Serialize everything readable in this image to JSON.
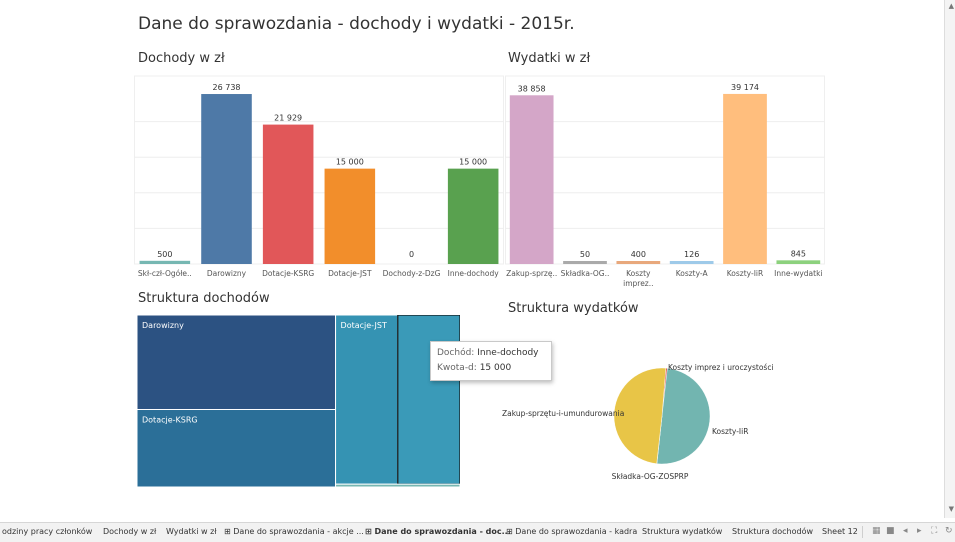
{
  "dashboard_title": "Dane do sprawozdania - dochody i wydatki - 2015r.",
  "colors": {
    "Skł-czł-Ogółem": "#76b7b2",
    "Darowizny": "#4e79a7",
    "Dotacje-KSRG": "#e15759",
    "Dotacje-JST": "#f28e2b",
    "Dochody-z-DzG": "#59a14f",
    "Inne-dochody": "#59a14f",
    "Zakup-sprzętu": "#d4a6c8",
    "Składka-OG": "#aaaaaa",
    "Koszty imprez": "#e8a87c",
    "Koszty-A": "#9ecae9",
    "Koszty-IiR": "#ffbe7d",
    "Inne-wydatki": "#8cd17d",
    "treemap_darowizny": "#2c5282",
    "treemap_ksrg": "#2b6f98",
    "treemap_jst": "#3593b3",
    "treemap_inne": "#3a9ab8",
    "pie_zakup": "#e8c547",
    "pie_iir": "#72b5b0",
    "pie_imprez": "#e15759",
    "pie_skladka": "#4e79a7"
  },
  "chart_data": [
    {
      "type": "bar",
      "title": "Dochody w zł",
      "categories": [
        "Skł-czł-Ogółe..",
        "Darowizny",
        "Dotacje-KSRG",
        "Dotacje-JST",
        "Dochody-z-DzG",
        "Inne-dochody"
      ],
      "values": [
        500,
        26738,
        21929,
        15000,
        0,
        15000
      ],
      "value_labels": [
        "500",
        "26 738",
        "21 929",
        "15 000",
        "0",
        "15 000"
      ],
      "colors": [
        "#76b7b2",
        "#4e79a7",
        "#e15759",
        "#f28e2b",
        "#59a14f",
        "#59a14f"
      ],
      "ylim": [
        0,
        28000
      ],
      "grid": true
    },
    {
      "type": "bar",
      "title": "Wydatki w zł",
      "categories": [
        "Zakup-sprzę..",
        "Składka-OG..",
        "Koszty imprez..",
        "Koszty-A",
        "Koszty-IiR",
        "Inne-wydatki"
      ],
      "category_lines": [
        [
          "Zakup-sprzę.."
        ],
        [
          "Składka-OG.."
        ],
        [
          "Koszty",
          "imprez.."
        ],
        [
          "Koszty-A"
        ],
        [
          "Koszty-IiR"
        ],
        [
          "Inne-wydatki"
        ]
      ],
      "values": [
        38858,
        50,
        400,
        126,
        39174,
        845
      ],
      "value_labels": [
        "38 858",
        "50",
        "400",
        "126",
        "39 174",
        "845"
      ],
      "colors": [
        "#d4a6c8",
        "#aaaaaa",
        "#e8a87c",
        "#9ecae9",
        "#ffbe7d",
        "#8cd17d"
      ],
      "ylim": [
        0,
        41000
      ],
      "grid": true
    },
    {
      "type": "treemap",
      "title": "Struktura dochodów",
      "items": [
        {
          "label": "Darowizny",
          "value": 26738,
          "shown_label": "Darowizny"
        },
        {
          "label": "Dotacje-KSRG",
          "value": 21929,
          "shown_label": "Dotacje-KSRG"
        },
        {
          "label": "Dotacje-JST",
          "value": 15000,
          "shown_label": "Dotacje-JST"
        },
        {
          "label": "Inne-dochody",
          "value": 15000,
          "shown_label": ""
        },
        {
          "label": "Skł-czł-Ogółem",
          "value": 500,
          "shown_label": ""
        }
      ]
    },
    {
      "type": "pie",
      "title": "Struktura wydatków",
      "slices": [
        {
          "label": "Koszty imprez i uroczystości",
          "value": 400
        },
        {
          "label": "Koszty-IiR",
          "value": 39174
        },
        {
          "label": "Składka-OG-ZOSPRP",
          "value": 50
        },
        {
          "label": "Zakup-sprzętu-i-umundurowania",
          "value": 38858
        }
      ]
    }
  ],
  "tooltip": {
    "key1": "Dochód:",
    "val1": "Inne-dochody",
    "key2": "Kwota-d:",
    "val2": "15 000"
  },
  "tabs": [
    "odziny pracy członków",
    "Dochody w zł",
    "Wydatki w zł",
    "Dane do sprawozdania - akcje ...",
    "Dane do sprawozdania - doc...",
    "Dane do sprawozdania - kadra",
    "Struktura wydatków",
    "Struktura dochodów",
    "Sheet 12"
  ],
  "active_tab_index": 4
}
